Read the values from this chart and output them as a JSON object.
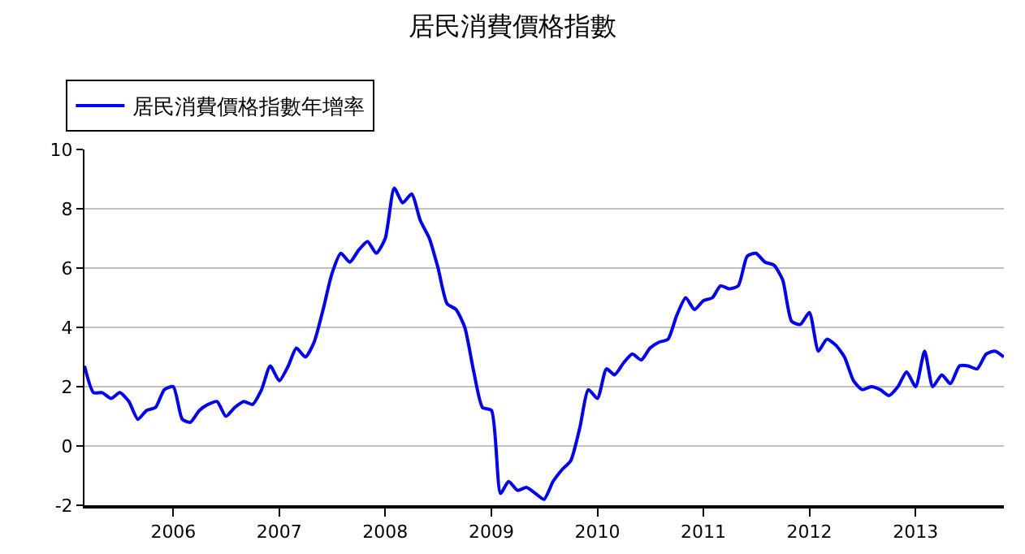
{
  "chart_data": {
    "type": "line",
    "title": "居民消費價格指數",
    "x": [
      "2005-03",
      "2005-04",
      "2005-05",
      "2005-06",
      "2005-07",
      "2005-08",
      "2005-09",
      "2005-10",
      "2005-11",
      "2005-12",
      "2006-01",
      "2006-02",
      "2006-03",
      "2006-04",
      "2006-05",
      "2006-06",
      "2006-07",
      "2006-08",
      "2006-09",
      "2006-10",
      "2006-11",
      "2006-12",
      "2007-01",
      "2007-02",
      "2007-03",
      "2007-04",
      "2007-05",
      "2007-06",
      "2007-07",
      "2007-08",
      "2007-09",
      "2007-10",
      "2007-11",
      "2007-12",
      "2008-01",
      "2008-02",
      "2008-03",
      "2008-04",
      "2008-05",
      "2008-06",
      "2008-07",
      "2008-08",
      "2008-09",
      "2008-10",
      "2008-11",
      "2008-12",
      "2009-01",
      "2009-02",
      "2009-03",
      "2009-04",
      "2009-05",
      "2009-06",
      "2009-07",
      "2009-08",
      "2009-09",
      "2009-10",
      "2009-11",
      "2009-12",
      "2010-01",
      "2010-02",
      "2010-03",
      "2010-04",
      "2010-05",
      "2010-06",
      "2010-07",
      "2010-08",
      "2010-09",
      "2010-10",
      "2010-11",
      "2010-12",
      "2011-01",
      "2011-02",
      "2011-03",
      "2011-04",
      "2011-05",
      "2011-06",
      "2011-07",
      "2011-08",
      "2011-09",
      "2011-10",
      "2011-11",
      "2011-12",
      "2012-01",
      "2012-02",
      "2012-03",
      "2012-04",
      "2012-05",
      "2012-06",
      "2012-07",
      "2012-08",
      "2012-09",
      "2012-10",
      "2012-11",
      "2012-12",
      "2013-01",
      "2013-02",
      "2013-03",
      "2013-04",
      "2013-05",
      "2013-06",
      "2013-07",
      "2013-08",
      "2013-09",
      "2013-10",
      "2013-11"
    ],
    "series": [
      {
        "name": "居民消費價格指數年增率",
        "color": "#0000ff",
        "values": [
          2.7,
          1.8,
          1.8,
          1.6,
          1.8,
          1.5,
          0.9,
          1.2,
          1.3,
          1.9,
          2.0,
          0.9,
          0.8,
          1.2,
          1.4,
          1.5,
          1.0,
          1.3,
          1.5,
          1.4,
          1.9,
          2.7,
          2.2,
          2.7,
          3.3,
          3.0,
          3.5,
          4.6,
          5.8,
          6.5,
          6.2,
          6.6,
          6.9,
          6.5,
          7.0,
          8.7,
          8.2,
          8.5,
          7.6,
          7.0,
          6.0,
          4.8,
          4.6,
          4.0,
          2.5,
          1.3,
          1.2,
          -1.6,
          -1.2,
          -1.5,
          -1.4,
          -1.6,
          -1.8,
          -1.2,
          -0.8,
          -0.5,
          0.6,
          1.9,
          1.6,
          2.6,
          2.4,
          2.8,
          3.1,
          2.9,
          3.3,
          3.5,
          3.6,
          4.4,
          5.0,
          4.6,
          4.9,
          5.0,
          5.4,
          5.3,
          5.4,
          6.4,
          6.5,
          6.2,
          6.1,
          5.6,
          4.2,
          4.1,
          4.5,
          3.2,
          3.6,
          3.4,
          3.0,
          2.2,
          1.9,
          2.0,
          1.9,
          1.7,
          2.0,
          2.5,
          2.0,
          3.2,
          2.0,
          2.4,
          2.1,
          2.7,
          2.7,
          2.6,
          3.1,
          3.2,
          3.0
        ]
      }
    ],
    "xlim": [
      "2005-03",
      "2013-11"
    ],
    "xticks": [
      "2006",
      "2007",
      "2008",
      "2009",
      "2010",
      "2011",
      "2012",
      "2013"
    ],
    "ylim": [
      -2,
      10
    ],
    "yticks": [
      -2,
      0,
      2,
      4,
      6,
      8,
      10
    ],
    "grid": "y",
    "legend": "top left",
    "marker": "none",
    "line_style": "solid"
  }
}
